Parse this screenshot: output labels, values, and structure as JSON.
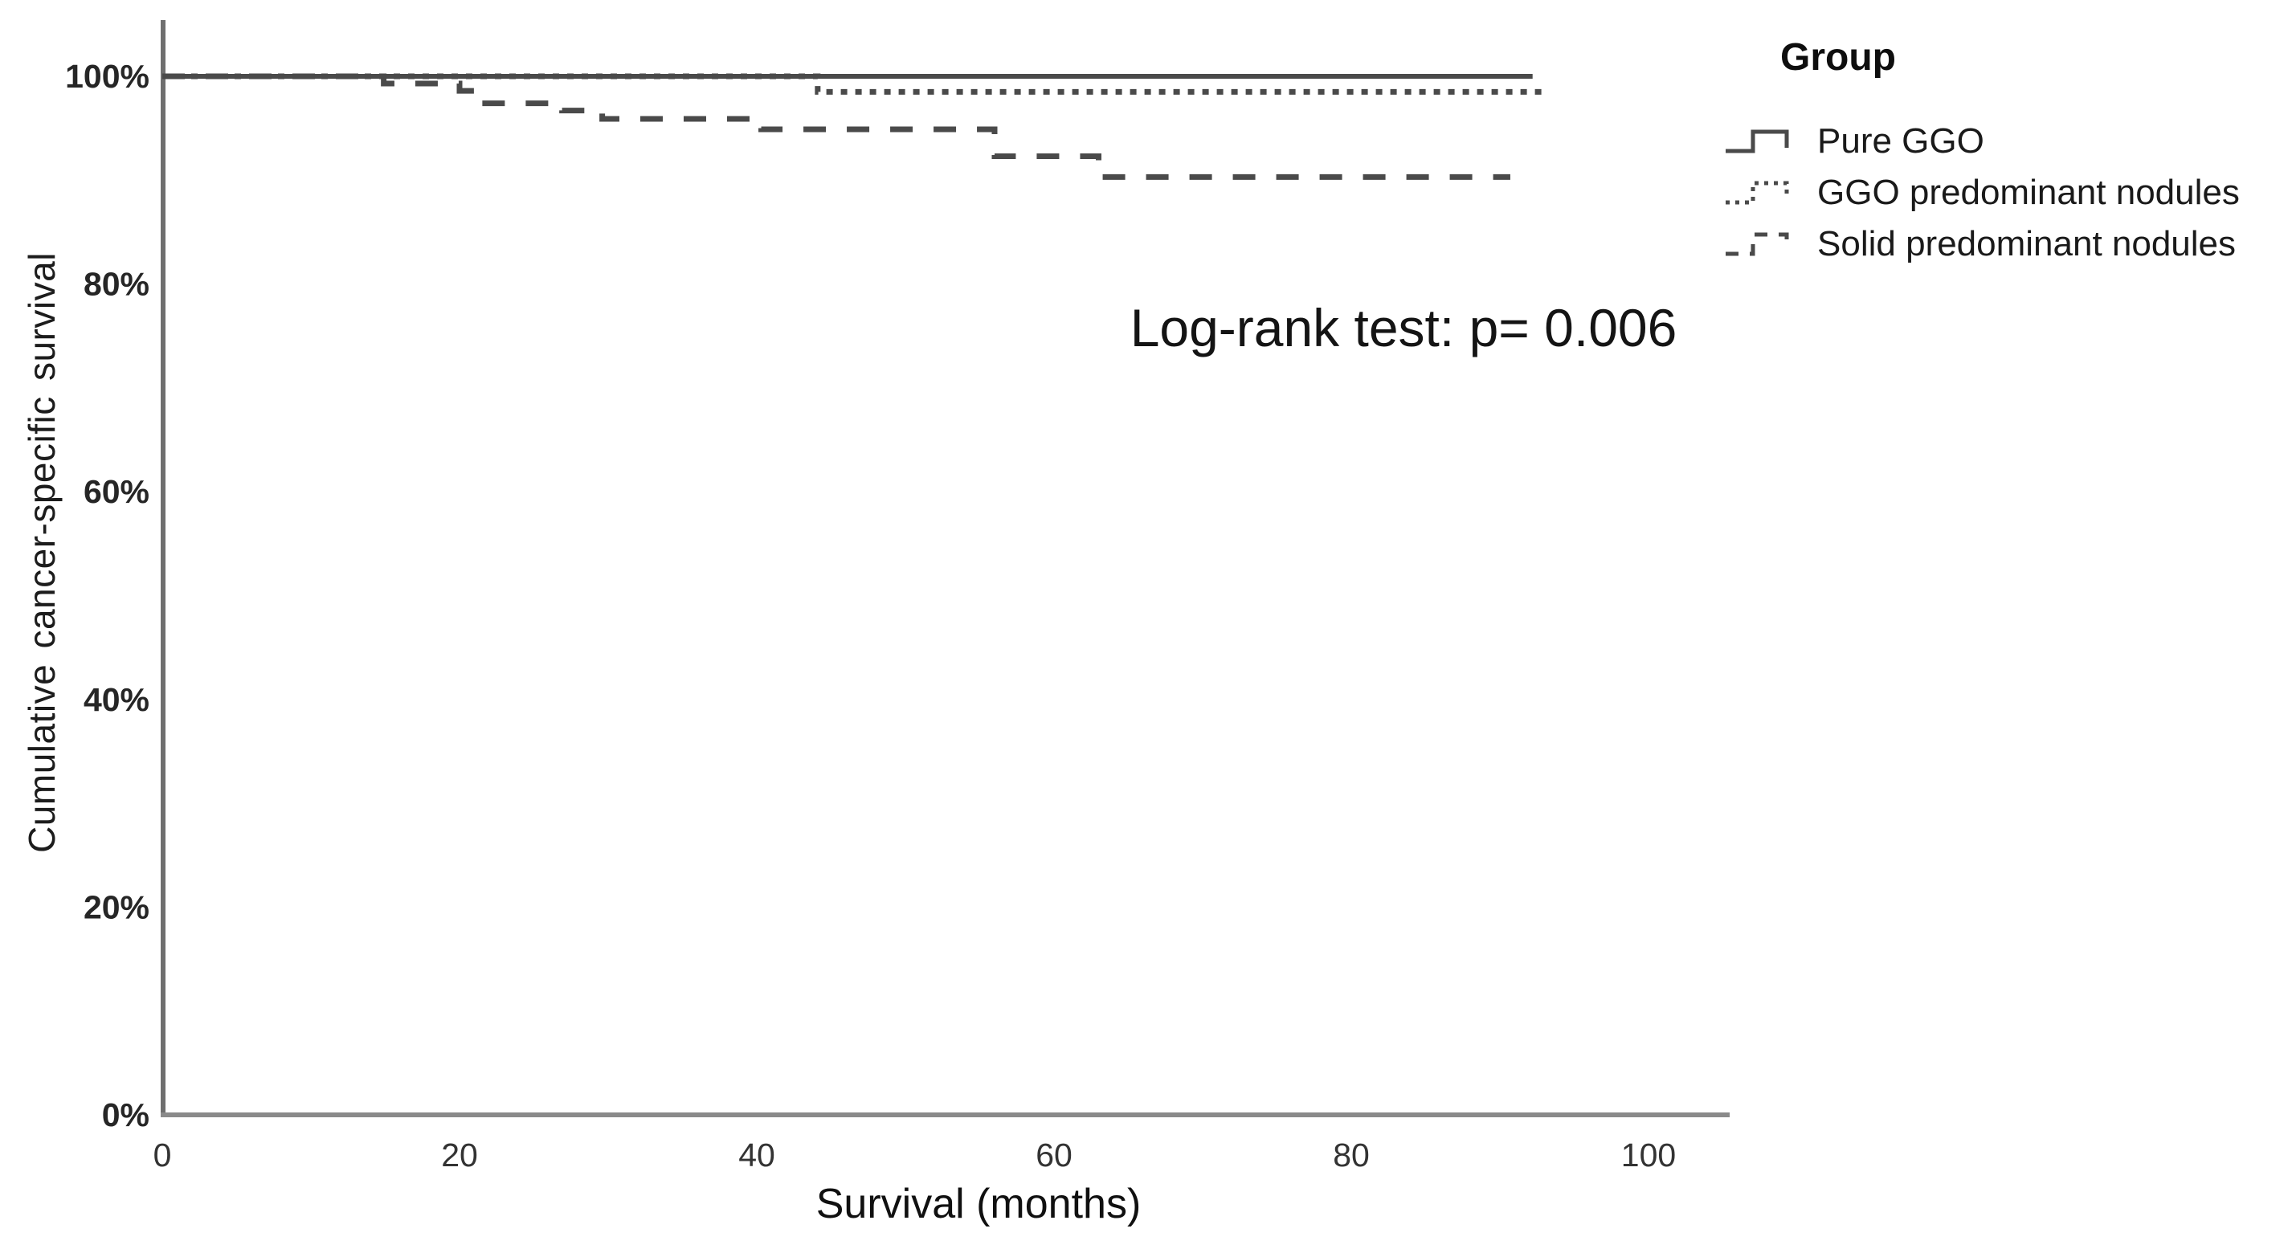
{
  "chart_data": {
    "type": "line",
    "subtype": "kaplan-meier-step",
    "title": "",
    "xlabel": "Survival (months)",
    "ylabel": "Cumulative cancer-specific survival",
    "annotation": "Log-rank test: p= 0.006",
    "x_ticks": [
      0,
      20,
      40,
      60,
      80,
      100
    ],
    "y_ticks": [
      "100%",
      "80%",
      "60%",
      "40%",
      "20%",
      "0%"
    ],
    "y_tick_values": [
      100,
      80,
      60,
      40,
      20,
      0
    ],
    "xlim": [
      0,
      105.5
    ],
    "ylim": [
      0,
      105
    ],
    "grid": false,
    "legend_position": "top-right",
    "legend_title": "Group",
    "line_color": "#4a4a4a",
    "series": [
      {
        "name": "Pure GGO",
        "line_style": "solid",
        "color": "#4a4a4a",
        "points": [
          [
            0,
            100
          ],
          [
            92.2,
            100
          ]
        ]
      },
      {
        "name": "GGO predominant nodules",
        "line_style": "dotted",
        "color": "#4a4a4a",
        "points": [
          [
            0,
            100
          ],
          [
            44.1,
            100
          ],
          [
            44.1,
            98.5
          ],
          [
            93.2,
            98.5
          ]
        ]
      },
      {
        "name": "Solid predominant nodules",
        "line_style": "dashed",
        "color": "#4a4a4a",
        "points": [
          [
            0,
            100
          ],
          [
            14.9,
            100
          ],
          [
            14.9,
            99.3
          ],
          [
            20,
            99.3
          ],
          [
            20,
            98.6
          ],
          [
            21.2,
            98.6
          ],
          [
            21.2,
            97.4
          ],
          [
            26.9,
            97.4
          ],
          [
            26.9,
            96.7
          ],
          [
            29.6,
            96.7
          ],
          [
            29.6,
            95.9
          ],
          [
            40.3,
            95.9
          ],
          [
            40.3,
            94.9
          ],
          [
            56,
            94.9
          ],
          [
            56,
            92.3
          ],
          [
            63,
            92.3
          ],
          [
            63,
            90.3
          ],
          [
            90.7,
            90.3
          ]
        ]
      }
    ]
  },
  "legend": {
    "title": "Group",
    "items": [
      {
        "label": "Pure GGO",
        "marker": "solid-step-line"
      },
      {
        "label": "GGO predominant nodules",
        "marker": "dotted-step-line"
      },
      {
        "label": "Solid predominant nodules",
        "marker": "dashed-step-line"
      }
    ]
  },
  "colors": {
    "background": "#ffffff",
    "curve": "#4a4a4a",
    "axis": "#6f6f6f",
    "text": "#1a1a1a"
  }
}
